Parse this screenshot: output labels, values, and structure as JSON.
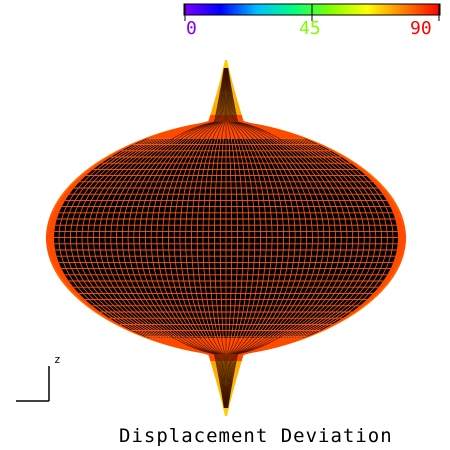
{
  "colorbar": {
    "min_label": "0",
    "mid_label": "45",
    "max_label": "90",
    "min_color": "#8000ff",
    "mid_color": "#80ff00",
    "max_color": "#ff0000",
    "stops": [
      "#8000ff",
      "#0000ff",
      "#00c0ff",
      "#00ff80",
      "#80ff00",
      "#ffff00",
      "#ff8000",
      "#ff0000"
    ]
  },
  "caption": "Displacement Deviation",
  "axis_triad": {
    "label": "z"
  },
  "surface": {
    "core_color": "#000000",
    "mesh_color": "#ff5a1a",
    "rim_color": "#ff4a00",
    "tip_color": "#ffc400"
  }
}
